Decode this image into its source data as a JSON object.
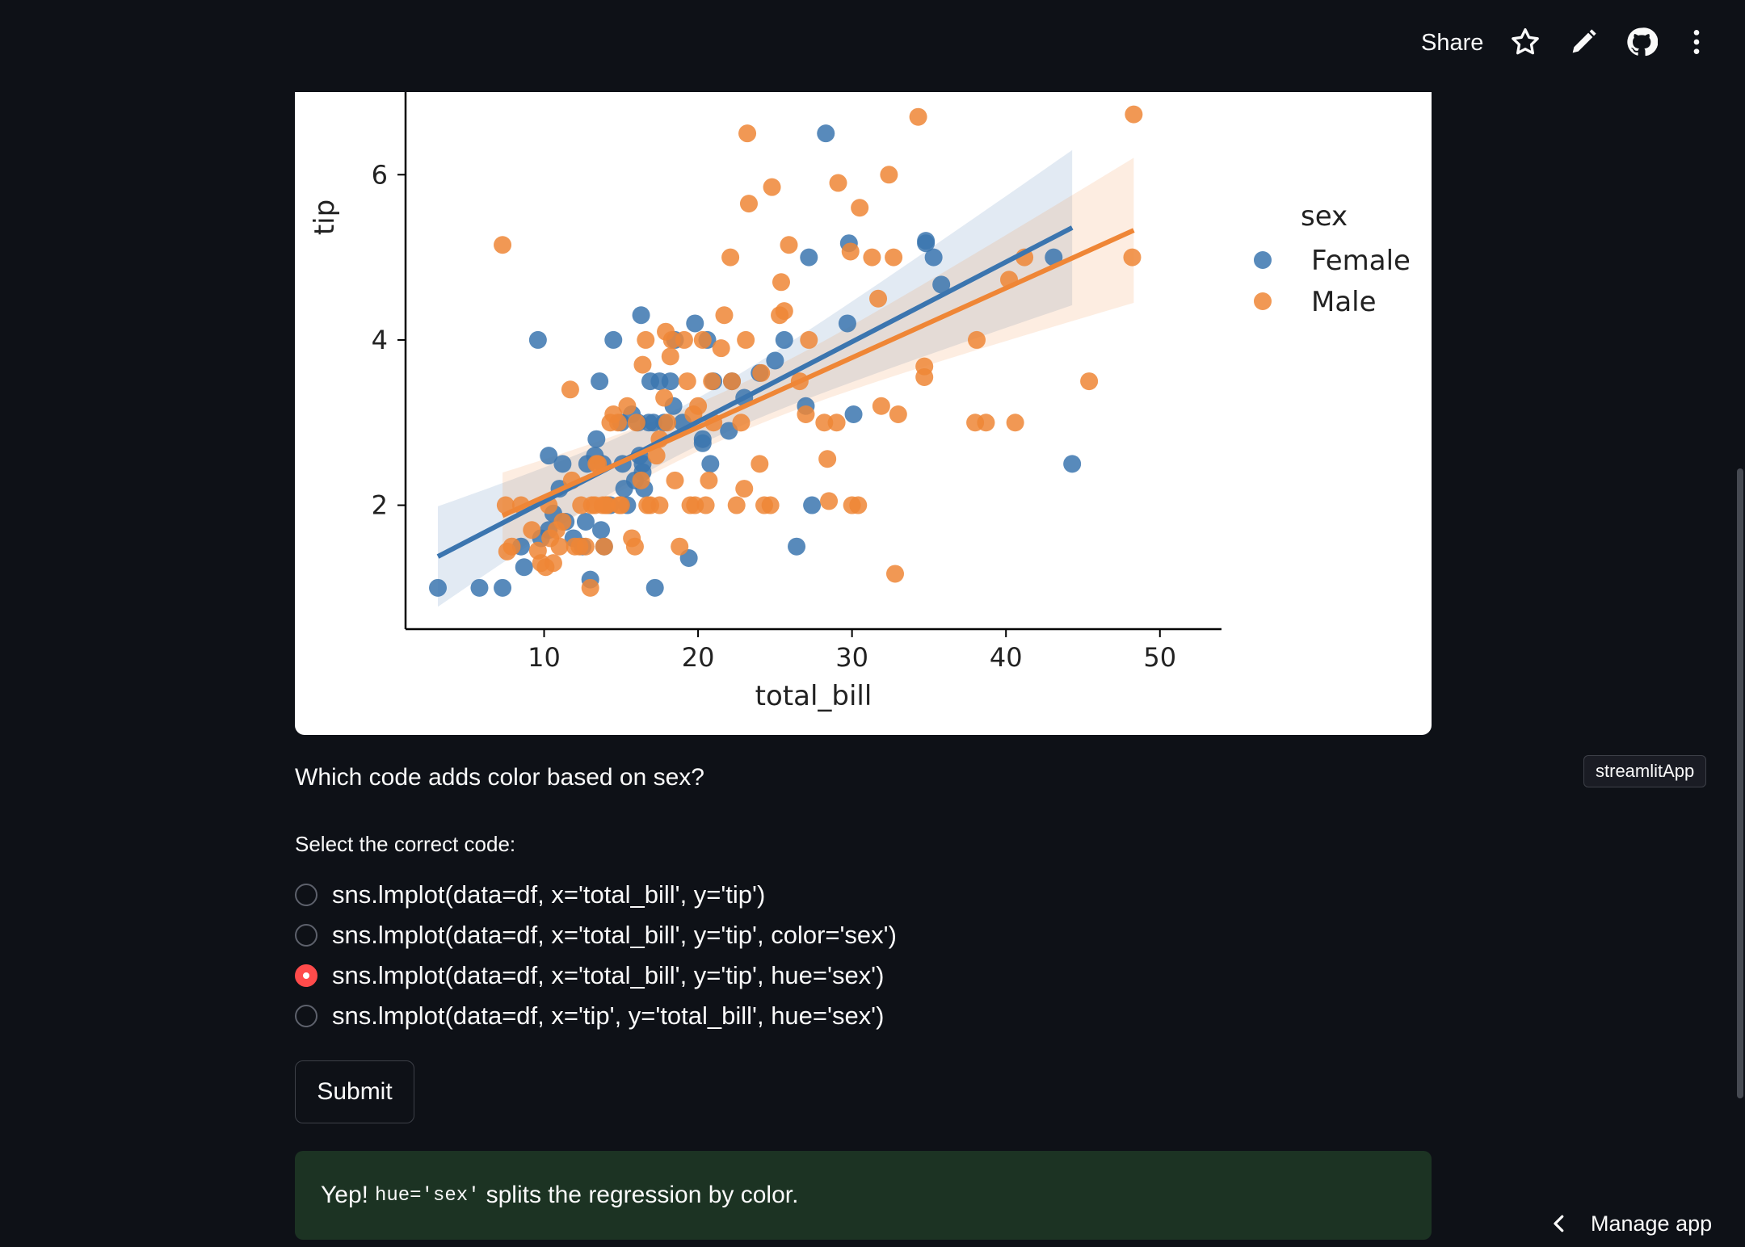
{
  "header": {
    "share_label": "Share",
    "icons": [
      "star-icon",
      "pencil-icon",
      "github-icon",
      "more-vertical-icon"
    ]
  },
  "chart_data": {
    "type": "scatter",
    "title": "",
    "xlabel": "total_bill",
    "ylabel": "tip",
    "xlim": [
      1,
      54
    ],
    "ylim": [
      0.5,
      7
    ],
    "xticks": [
      10,
      20,
      30,
      40,
      50
    ],
    "yticks": [
      2,
      4,
      6
    ],
    "grid": false,
    "legend": {
      "title": "sex",
      "placement": "right"
    },
    "series": [
      {
        "name": "Female",
        "color": "#3b75af",
        "points": [
          [
            3.1,
            1.0
          ],
          [
            5.8,
            1.0
          ],
          [
            7.3,
            1.0
          ],
          [
            9.6,
            4.0
          ],
          [
            10.3,
            2.6
          ],
          [
            10.3,
            1.7
          ],
          [
            11.2,
            2.5
          ],
          [
            11.4,
            1.8
          ],
          [
            11.9,
            1.6
          ],
          [
            12.7,
            1.8
          ],
          [
            12.8,
            2.5
          ],
          [
            13.0,
            1.1
          ],
          [
            13.3,
            2.6
          ],
          [
            13.4,
            2.8
          ],
          [
            13.6,
            3.5
          ],
          [
            13.7,
            1.7
          ],
          [
            13.8,
            2.5
          ],
          [
            14.3,
            2.0
          ],
          [
            14.5,
            4.0
          ],
          [
            15.0,
            3.0
          ],
          [
            15.2,
            2.2
          ],
          [
            15.4,
            2.0
          ],
          [
            15.7,
            3.1
          ],
          [
            16.1,
            3.0
          ],
          [
            16.3,
            4.3
          ],
          [
            16.4,
            2.4
          ],
          [
            16.4,
            2.5
          ],
          [
            16.5,
            2.2
          ],
          [
            16.9,
            3.5
          ],
          [
            17.1,
            3.0
          ],
          [
            17.2,
            1.0
          ],
          [
            17.5,
            3.5
          ],
          [
            18.2,
            3.5
          ],
          [
            18.4,
            3.2
          ],
          [
            18.5,
            4.0
          ],
          [
            19.0,
            3.0
          ],
          [
            19.8,
            4.2
          ],
          [
            20.3,
            2.8
          ],
          [
            20.3,
            2.75
          ],
          [
            20.6,
            4.0
          ],
          [
            20.8,
            2.5
          ],
          [
            21.0,
            3.5
          ],
          [
            22.0,
            2.9
          ],
          [
            22.2,
            3.5
          ],
          [
            23.0,
            3.3
          ],
          [
            24.0,
            3.6
          ],
          [
            25.0,
            3.75
          ],
          [
            25.6,
            4.0
          ],
          [
            26.4,
            1.5
          ],
          [
            27.0,
            3.2
          ],
          [
            27.2,
            5.0
          ],
          [
            27.4,
            2.0
          ],
          [
            28.3,
            6.5
          ],
          [
            29.7,
            4.2
          ],
          [
            29.8,
            5.17
          ],
          [
            30.1,
            3.1
          ],
          [
            34.8,
            5.2
          ],
          [
            34.8,
            5.17
          ],
          [
            35.3,
            5.0
          ],
          [
            35.8,
            4.67
          ],
          [
            43.1,
            5.0
          ],
          [
            44.3,
            2.5
          ],
          [
            8.5,
            1.5
          ],
          [
            8.7,
            1.25
          ],
          [
            9.8,
            1.6
          ],
          [
            12.5,
            1.5
          ],
          [
            14.1,
            2.0
          ],
          [
            15.1,
            2.5
          ],
          [
            16.2,
            2.6
          ],
          [
            17.8,
            3.0
          ],
          [
            19.4,
            1.36
          ],
          [
            10.6,
            1.9
          ],
          [
            11.0,
            2.2
          ],
          [
            13.9,
            1.5
          ],
          [
            15.9,
            2.3
          ],
          [
            16.8,
            3.0
          ]
        ]
      },
      {
        "name": "Male",
        "color": "#ef8636",
        "points": [
          [
            7.3,
            5.15
          ],
          [
            7.5,
            2.0
          ],
          [
            7.6,
            1.44
          ],
          [
            7.9,
            1.5
          ],
          [
            8.5,
            2.0
          ],
          [
            9.2,
            1.7
          ],
          [
            9.6,
            1.45
          ],
          [
            9.8,
            1.3
          ],
          [
            10.1,
            1.25
          ],
          [
            10.3,
            2.0
          ],
          [
            10.4,
            1.6
          ],
          [
            10.6,
            1.3
          ],
          [
            11.0,
            1.5
          ],
          [
            11.2,
            1.8
          ],
          [
            11.7,
            3.4
          ],
          [
            11.8,
            2.3
          ],
          [
            12.0,
            1.5
          ],
          [
            12.3,
            1.5
          ],
          [
            12.4,
            2.0
          ],
          [
            12.7,
            1.5
          ],
          [
            13.0,
            1.0
          ],
          [
            13.1,
            2.0
          ],
          [
            13.3,
            2.0
          ],
          [
            13.5,
            2.5
          ],
          [
            13.8,
            2.0
          ],
          [
            13.9,
            1.5
          ],
          [
            14.1,
            2.0
          ],
          [
            14.3,
            3.0
          ],
          [
            14.5,
            3.1
          ],
          [
            14.8,
            3.0
          ],
          [
            15.0,
            2.0
          ],
          [
            15.4,
            3.2
          ],
          [
            15.7,
            1.6
          ],
          [
            15.9,
            1.5
          ],
          [
            16.0,
            3.0
          ],
          [
            16.3,
            2.3
          ],
          [
            16.4,
            3.7
          ],
          [
            16.6,
            4.0
          ],
          [
            16.9,
            2.0
          ],
          [
            17.3,
            2.6
          ],
          [
            17.5,
            2.8
          ],
          [
            17.8,
            3.3
          ],
          [
            17.9,
            4.1
          ],
          [
            18.0,
            3.0
          ],
          [
            18.2,
            3.8
          ],
          [
            18.3,
            4.0
          ],
          [
            18.5,
            2.3
          ],
          [
            18.8,
            1.5
          ],
          [
            19.1,
            4.0
          ],
          [
            19.3,
            3.5
          ],
          [
            19.5,
            2.0
          ],
          [
            19.7,
            3.1
          ],
          [
            20.0,
            3.2
          ],
          [
            20.3,
            4.0
          ],
          [
            20.5,
            2.0
          ],
          [
            20.7,
            2.3
          ],
          [
            20.9,
            3.5
          ],
          [
            21.0,
            3.0
          ],
          [
            21.5,
            3.9
          ],
          [
            21.7,
            4.3
          ],
          [
            22.1,
            5.0
          ],
          [
            22.2,
            3.5
          ],
          [
            22.5,
            2.0
          ],
          [
            22.8,
            3.0
          ],
          [
            23.0,
            2.2
          ],
          [
            23.1,
            4.0
          ],
          [
            23.2,
            6.5
          ],
          [
            23.3,
            5.65
          ],
          [
            24.0,
            2.5
          ],
          [
            24.1,
            3.6
          ],
          [
            24.3,
            2.0
          ],
          [
            24.7,
            2.0
          ],
          [
            24.8,
            5.85
          ],
          [
            25.3,
            4.3
          ],
          [
            25.4,
            4.7
          ],
          [
            25.6,
            4.35
          ],
          [
            25.9,
            5.15
          ],
          [
            26.6,
            3.5
          ],
          [
            27.0,
            3.1
          ],
          [
            27.2,
            4.0
          ],
          [
            28.2,
            3.0
          ],
          [
            28.4,
            2.56
          ],
          [
            28.5,
            2.05
          ],
          [
            29.0,
            3.0
          ],
          [
            29.1,
            5.9
          ],
          [
            29.9,
            5.07
          ],
          [
            30.0,
            2.0
          ],
          [
            30.4,
            2.0
          ],
          [
            30.5,
            5.6
          ],
          [
            31.3,
            5.0
          ],
          [
            31.7,
            4.5
          ],
          [
            31.9,
            3.2
          ],
          [
            32.4,
            6.0
          ],
          [
            32.7,
            5.0
          ],
          [
            32.8,
            1.17
          ],
          [
            33.0,
            3.1
          ],
          [
            34.3,
            6.7
          ],
          [
            34.7,
            3.68
          ],
          [
            34.7,
            3.55
          ],
          [
            38.1,
            4.0
          ],
          [
            38.0,
            3.0
          ],
          [
            38.7,
            3.0
          ],
          [
            40.2,
            4.73
          ],
          [
            40.6,
            3.0
          ],
          [
            41.2,
            5.0
          ],
          [
            45.4,
            3.5
          ],
          [
            48.2,
            5.0
          ],
          [
            48.3,
            6.73
          ],
          [
            10.8,
            1.7
          ],
          [
            13.4,
            2.5
          ],
          [
            14.9,
            2.0
          ],
          [
            16.7,
            2.0
          ],
          [
            17.5,
            2.0
          ],
          [
            19.8,
            2.0
          ],
          [
            14.0,
            2.0
          ]
        ]
      }
    ]
  },
  "question": "Which code adds color based on sex?",
  "select_label": "Select the correct code:",
  "options": [
    "sns.lmplot(data=df, x='total_bill', y='tip')",
    "sns.lmplot(data=df, x='total_bill', y='tip', color='sex')",
    "sns.lmplot(data=df, x='total_bill', y='tip', hue='sex')",
    "sns.lmplot(data=df, x='tip', y='total_bill', hue='sex')"
  ],
  "selected_index": 2,
  "submit_label": "Submit",
  "success": {
    "prefix": "Yep!",
    "code": "hue='sex'",
    "suffix": "splits the regression by color."
  },
  "tooltip": "streamlitApp",
  "manage_app_label": "Manage app",
  "colors": {
    "accent": "#ff4b4b",
    "background": "#0e1117",
    "success_bg": "#1c3323"
  }
}
